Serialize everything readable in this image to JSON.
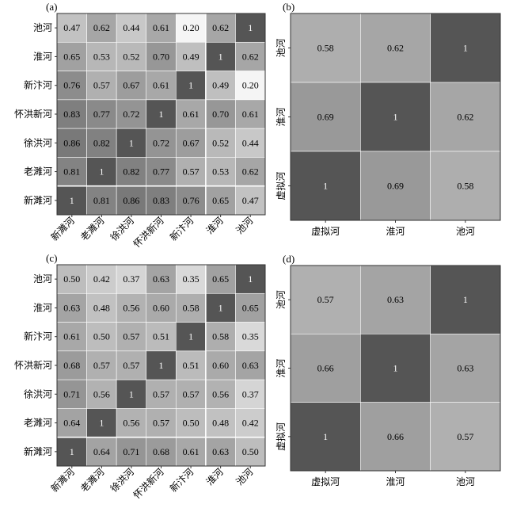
{
  "chart_data": [
    {
      "type": "heatmap",
      "panel_label": "(a)",
      "rows": [
        "池河",
        "淮河",
        "新汴河",
        "怀洪新河",
        "徐洪河",
        "老濉河",
        "新濉河"
      ],
      "columns": [
        "新濉河",
        "老濉河",
        "徐洪河",
        "怀洪新河",
        "新汴河",
        "淮河",
        "池河"
      ],
      "values": [
        [
          "0.47",
          "0.62",
          "0.44",
          "0.61",
          "0.20",
          "0.62",
          "1"
        ],
        [
          "0.65",
          "0.53",
          "0.52",
          "0.70",
          "0.49",
          "1",
          "0.62"
        ],
        [
          "0.76",
          "0.57",
          "0.67",
          "0.61",
          "1",
          "0.49",
          "0.20"
        ],
        [
          "0.83",
          "0.77",
          "0.72",
          "1",
          "0.61",
          "0.70",
          "0.61"
        ],
        [
          "0.86",
          "0.82",
          "1",
          "0.72",
          "0.67",
          "0.52",
          "0.44"
        ],
        [
          "0.81",
          "1",
          "0.82",
          "0.77",
          "0.57",
          "0.53",
          "0.62"
        ],
        [
          "1",
          "0.81",
          "0.86",
          "0.83",
          "0.76",
          "0.65",
          "0.47"
        ]
      ],
      "grid": true,
      "grid_after_row": 5,
      "grid_after_col": 4
    },
    {
      "type": "heatmap",
      "panel_label": "(b)",
      "rows": [
        "池河",
        "淮河",
        "虚拟河"
      ],
      "columns": [
        "虚拟河",
        "淮河",
        "池河"
      ],
      "values": [
        [
          "0.58",
          "0.62",
          "1"
        ],
        [
          "0.69",
          "1",
          "0.62"
        ],
        [
          "1",
          "0.69",
          "0.58"
        ]
      ],
      "grid": true
    },
    {
      "type": "heatmap",
      "panel_label": "(c)",
      "rows": [
        "池河",
        "淮河",
        "新汴河",
        "怀洪新河",
        "徐洪河",
        "老濉河",
        "新濉河"
      ],
      "columns": [
        "新濉河",
        "老濉河",
        "徐洪河",
        "怀洪新河",
        "新汴河",
        "淮河",
        "池河"
      ],
      "values": [
        [
          "0.50",
          "0.42",
          "0.37",
          "0.63",
          "0.35",
          "0.65",
          "1"
        ],
        [
          "0.63",
          "0.48",
          "0.56",
          "0.60",
          "0.58",
          "1",
          "0.65"
        ],
        [
          "0.61",
          "0.50",
          "0.57",
          "0.51",
          "1",
          "0.58",
          "0.35"
        ],
        [
          "0.68",
          "0.57",
          "0.57",
          "1",
          "0.51",
          "0.60",
          "0.63"
        ],
        [
          "0.71",
          "0.56",
          "1",
          "0.57",
          "0.57",
          "0.56",
          "0.37"
        ],
        [
          "0.64",
          "1",
          "0.56",
          "0.57",
          "0.50",
          "0.48",
          "0.42"
        ],
        [
          "1",
          "0.64",
          "0.71",
          "0.68",
          "0.61",
          "0.63",
          "0.50"
        ]
      ],
      "grid": true,
      "grid_after_row": 5,
      "grid_after_col": 4
    },
    {
      "type": "heatmap",
      "panel_label": "(d)",
      "rows": [
        "池河",
        "淮河",
        "虚拟河"
      ],
      "columns": [
        "虚拟河",
        "淮河",
        "池河"
      ],
      "values": [
        [
          "0.57",
          "0.63",
          "1"
        ],
        [
          "0.66",
          "1",
          "0.63"
        ],
        [
          "1",
          "0.66",
          "0.57"
        ]
      ],
      "grid": true
    }
  ]
}
